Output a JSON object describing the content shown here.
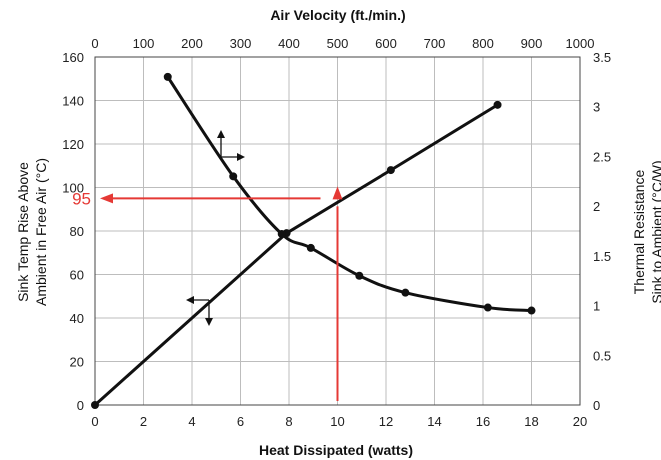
{
  "chart_data": {
    "type": "line",
    "top_axis_title": "Air Velocity (ft./min.)",
    "bottom_axis_title": "Heat Dissipated (watts)",
    "left_axis_title_lines": [
      "Sink Temp Rise Above",
      "Ambient in Free Air (°C)"
    ],
    "right_axis_title_lines": [
      "Thermal Resistance",
      "Sink to Ambient (°C/W)"
    ],
    "x_bottom": {
      "min": 0,
      "max": 20,
      "ticks": [
        "0",
        "2",
        "4",
        "6",
        "8",
        "10",
        "12",
        "14",
        "16",
        "18",
        "20"
      ]
    },
    "x_top": {
      "min": 0,
      "max": 1000,
      "ticks": [
        "0",
        "100",
        "200",
        "300",
        "400",
        "500",
        "600",
        "700",
        "800",
        "900",
        "1000"
      ]
    },
    "y_left": {
      "min": 0,
      "max": 160,
      "ticks": [
        "0",
        "20",
        "40",
        "60",
        "80",
        "100",
        "120",
        "140",
        "160"
      ]
    },
    "y_right": {
      "min": 0,
      "max": 3.5,
      "ticks": [
        "0",
        "0.5",
        "1",
        "1.5",
        "2",
        "2.5",
        "3",
        "3.5"
      ]
    },
    "grid": true,
    "series": [
      {
        "axes": "bottom-left",
        "points": [
          [
            0,
            0
          ],
          [
            7.9,
            79
          ],
          [
            12.2,
            108
          ],
          [
            16.6,
            138
          ]
        ]
      },
      {
        "axes": "top-right",
        "points": [
          [
            150,
            3.3
          ],
          [
            285,
            2.3
          ],
          [
            385,
            1.72
          ],
          [
            445,
            1.58
          ],
          [
            545,
            1.3
          ],
          [
            640,
            1.13
          ],
          [
            810,
            0.98
          ],
          [
            900,
            0.95
          ]
        ]
      }
    ],
    "annotation": {
      "label": "95",
      "color": "#e53935",
      "x_value": 10,
      "y_value": 95
    },
    "line_color": "#111111"
  }
}
